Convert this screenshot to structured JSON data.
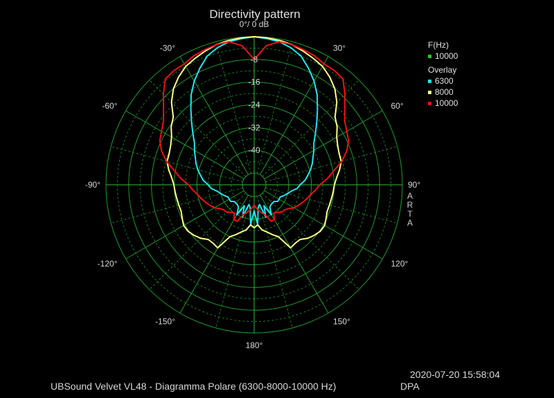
{
  "title": "Directivity pattern",
  "legend": {
    "current_heading": "F(Hz)",
    "current_entries": [
      {
        "label": "10000",
        "color": "#22cc22"
      }
    ],
    "overlay_heading": "Overlay",
    "overlay_entries": [
      {
        "label": "6300",
        "color": "#22e6f0"
      },
      {
        "label": "8000",
        "color": "#ffff88"
      },
      {
        "label": "10000",
        "color": "#ee1111"
      }
    ]
  },
  "brand_vertical": "ARTA",
  "timestamp": "2020-07-20  15:58:04",
  "caption": "UBSound Velvet VL48 - Diagramma Polare (6300-8000-10000 Hz)",
  "company": "DPA",
  "chart_data": {
    "type": "polar",
    "title": "Directivity pattern",
    "r_unit": "dB",
    "r_range": [
      -48,
      0
    ],
    "r_ticks": [
      {
        "value": 0,
        "label": "0°/ 0 dB"
      },
      {
        "value": -8,
        "label": "-8"
      },
      {
        "value": -16,
        "label": "-16"
      },
      {
        "value": -24,
        "label": "-24"
      },
      {
        "value": -32,
        "label": "-32"
      },
      {
        "value": -40,
        "label": "-40"
      }
    ],
    "angle_ticks": [
      {
        "value": -30,
        "label": "-30°"
      },
      {
        "value": 30,
        "label": "30°"
      },
      {
        "value": -60,
        "label": "-60°"
      },
      {
        "value": 60,
        "label": "60°"
      },
      {
        "value": -90,
        "label": "-90°"
      },
      {
        "value": 90,
        "label": "90°"
      },
      {
        "value": -120,
        "label": "-120°"
      },
      {
        "value": 120,
        "label": "120°"
      },
      {
        "value": -150,
        "label": "-150°"
      },
      {
        "value": 150,
        "label": "150°"
      },
      {
        "value": 180,
        "label": "180°"
      }
    ],
    "grid": true,
    "angles": [
      0,
      5,
      10,
      15,
      20,
      25,
      30,
      35,
      40,
      45,
      50,
      55,
      60,
      65,
      70,
      75,
      80,
      85,
      90,
      95,
      100,
      105,
      110,
      115,
      120,
      125,
      130,
      135,
      140,
      145,
      150,
      155,
      160,
      165,
      170,
      175,
      180
    ],
    "series": [
      {
        "name": "6300",
        "color": "#22e6f0",
        "values": [
          0,
          -0.5,
          -1,
          -2.2,
          -3.9,
          -6.9,
          -10,
          -13.5,
          -17.5,
          -21,
          -24,
          -26.5,
          -27.9,
          -29.3,
          -30.4,
          -31.6,
          -33,
          -34.2,
          -36,
          -37,
          -39,
          -40,
          -41,
          -42,
          -42,
          -42,
          -43,
          -43,
          -43,
          -42.5,
          -40,
          -44,
          -40,
          -45,
          -44,
          -38,
          -43
        ]
      },
      {
        "name": "8000",
        "color": "#ffff88",
        "values": [
          0,
          -0.2,
          -0.5,
          -1,
          -2,
          -3,
          -4,
          -5.8,
          -8,
          -11,
          -15,
          -16.5,
          -18.6,
          -19.7,
          -20.3,
          -20.4,
          -21.6,
          -23,
          -23.9,
          -24.2,
          -24.5,
          -24.7,
          -24.8,
          -24.2,
          -23.5,
          -23.7,
          -24.5,
          -25.5,
          -27,
          -27,
          -26.5,
          -32,
          -33.5,
          -35,
          -36,
          -38,
          -37
        ]
      },
      {
        "name": "10000",
        "color": "#ee1111",
        "values": [
          -8,
          -3,
          -1,
          -1,
          -1.5,
          -2,
          -3,
          -3,
          -3.5,
          -7,
          -10.5,
          -13.2,
          -14.5,
          -15.5,
          -17.5,
          -20.2,
          -23.7,
          -26.2,
          -29.1,
          -30.5,
          -32,
          -33,
          -34,
          -35,
          -36,
          -37.5,
          -38.3,
          -38.5,
          -39.5,
          -40,
          -38,
          -38,
          -41,
          -42,
          -43,
          -44,
          -45
        ]
      }
    ]
  }
}
